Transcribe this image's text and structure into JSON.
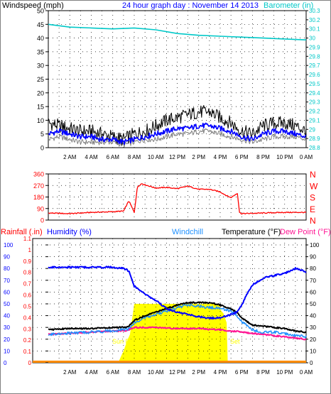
{
  "chart_data": [
    {
      "type": "line",
      "panel": "wind-barometer",
      "title": "24 hour graph day : November 14 2013",
      "ylabel_left": "Windspeed (mph)",
      "ylabel_right": "Barometer (in)",
      "ylim_left": [
        0,
        50
      ],
      "yticks_left": [
        "0",
        "5",
        "10",
        "15",
        "20",
        "25",
        "30",
        "35",
        "40",
        "45",
        "50"
      ],
      "ylim_right": [
        28.8,
        30.3
      ],
      "yticks_right": [
        "28.8",
        "28.9",
        "29",
        "29.1",
        "29.2",
        "29.3",
        "29.4",
        "29.5",
        "29.6",
        "29.7",
        "29.8",
        "29.9",
        "30",
        "30.1",
        "30.2",
        "30.3"
      ],
      "xticks": [
        "2 AM",
        "4 AM",
        "6 AM",
        "8 AM",
        "10 AM",
        "12 PM",
        "2 PM",
        "4 PM",
        "6 PM",
        "8 PM",
        "10 PM",
        "0 AM"
      ],
      "grid": true,
      "series": [
        {
          "name": "Windspeed (mph)",
          "color": "#0000ff",
          "x": [
            0,
            1,
            2,
            3,
            4,
            5,
            6,
            7,
            8,
            9,
            10,
            11,
            12,
            13,
            14,
            15,
            16,
            17,
            18,
            19,
            20,
            21,
            22,
            23,
            24
          ],
          "values": [
            5,
            6,
            5,
            4,
            4,
            3,
            3,
            2,
            3,
            4,
            5,
            6,
            7,
            7,
            8,
            8,
            7,
            6,
            4,
            3,
            5,
            6,
            6,
            5,
            4
          ]
        },
        {
          "name": "Wind gust (mph)",
          "color": "#000000",
          "x": [
            0,
            1,
            2,
            3,
            4,
            5,
            6,
            7,
            8,
            9,
            10,
            11,
            12,
            13,
            14,
            15,
            16,
            17,
            18,
            19,
            20,
            21,
            22,
            23,
            24
          ],
          "values": [
            9,
            8,
            7,
            6,
            6,
            5,
            4,
            3,
            5,
            6,
            8,
            10,
            11,
            12,
            13,
            13,
            11,
            9,
            6,
            5,
            8,
            9,
            9,
            8,
            6
          ]
        },
        {
          "name": "Wind average (mph)",
          "color": "#808080",
          "x": [
            0,
            1,
            2,
            3,
            4,
            5,
            6,
            7,
            8,
            9,
            10,
            11,
            12,
            13,
            14,
            15,
            16,
            17,
            18,
            19,
            20,
            21,
            22,
            23,
            24
          ],
          "values": [
            3,
            4,
            3,
            2,
            2,
            2,
            2,
            1,
            2,
            3,
            3,
            4,
            5,
            5,
            6,
            6,
            5,
            4,
            3,
            2,
            3,
            4,
            4,
            4,
            3
          ]
        },
        {
          "name": "Barometer (in)",
          "color": "#00c8c8",
          "axis": "right",
          "x": [
            0,
            2,
            4,
            6,
            8,
            10,
            12,
            14,
            16,
            18,
            20,
            22,
            24
          ],
          "values": [
            30.15,
            30.12,
            30.11,
            30.1,
            30.11,
            30.09,
            30.05,
            30.03,
            30.02,
            30.01,
            30.0,
            29.99,
            29.98
          ]
        }
      ]
    },
    {
      "type": "line",
      "panel": "wind-direction",
      "ylim": [
        0,
        360
      ],
      "yticks": [
        "0",
        "90",
        "180",
        "270",
        "360"
      ],
      "compass_labels": [
        "N",
        "W",
        "S",
        "E",
        "N"
      ],
      "grid": true,
      "series": [
        {
          "name": "Wind direction",
          "color": "#ff0000",
          "x": [
            0,
            2,
            4,
            6,
            7,
            7.5,
            8,
            8.3,
            8.7,
            9,
            10,
            11,
            12,
            13,
            14,
            15,
            16,
            16.5,
            17,
            17.6,
            17.8,
            18,
            20,
            22,
            24
          ],
          "values": [
            55,
            50,
            60,
            65,
            70,
            150,
            60,
            260,
            285,
            275,
            250,
            255,
            245,
            265,
            240,
            240,
            220,
            195,
            175,
            210,
            60,
            50,
            55,
            60,
            60
          ]
        }
      ]
    },
    {
      "type": "line",
      "panel": "temperature-humidity",
      "ylabel_rain": "Rainfall (.in)",
      "ylabel_humidity": "Humidity (%)",
      "ylabel_windchill": "Windchill",
      "ylabel_temperature": "Temperature (°F)",
      "ylabel_dewpoint": "Dew Point (°F)",
      "ylim_rain": [
        0,
        1.1
      ],
      "yticks_rain": [
        "0",
        "0.1",
        "0.2",
        "0.3",
        "0.4",
        "0.5",
        "0.6",
        "0.7",
        "0.8",
        "0.9",
        "1",
        "1.1"
      ],
      "ylim_humidity": [
        0,
        100
      ],
      "yticks_humidity": [
        "0",
        "10",
        "20",
        "30",
        "40",
        "50",
        "60",
        "70",
        "80",
        "90",
        "100"
      ],
      "ylim_temperature": [
        0,
        100
      ],
      "yticks_temperature": [
        "0",
        "10",
        "20",
        "30",
        "40",
        "50",
        "60",
        "70",
        "80",
        "90",
        "100"
      ],
      "xticks": [
        "2 AM",
        "4 AM",
        "6 AM",
        "8 AM",
        "10 AM",
        "12 PM",
        "2 PM",
        "4 PM",
        "6 PM",
        "8 PM",
        "10 PM",
        "0 AM"
      ],
      "annotations": [
        "Sun Rise",
        "Set"
      ],
      "grid": true,
      "series": [
        {
          "name": "Humidity (%)",
          "color": "#0000ff",
          "x": [
            0,
            2,
            4,
            6,
            7,
            7.5,
            8,
            8.5,
            9,
            10,
            11,
            12,
            13,
            14,
            15,
            16,
            17,
            17.5,
            18,
            18.5,
            19,
            20,
            21,
            22,
            23,
            24
          ],
          "values": [
            81,
            81,
            81,
            81,
            80,
            78,
            65,
            62,
            58,
            53,
            46,
            43,
            41,
            39,
            38,
            38,
            41,
            43,
            49,
            58,
            66,
            72,
            74,
            76,
            80,
            77
          ]
        },
        {
          "name": "Temperature (°F)",
          "color": "#000000",
          "x": [
            0,
            2,
            4,
            6,
            7,
            7.5,
            8,
            9,
            10,
            11,
            12,
            13,
            14,
            15,
            16,
            17,
            17.5,
            18,
            18.5,
            19,
            20,
            21,
            22,
            23,
            24
          ],
          "values": [
            28,
            29,
            29,
            30,
            30,
            31,
            36,
            40,
            43,
            46,
            49,
            51,
            51,
            51,
            49,
            46,
            43,
            38,
            35,
            32,
            31,
            30,
            29,
            27,
            26
          ]
        },
        {
          "name": "Windchill",
          "color": "#1e90ff",
          "x": [
            0,
            2,
            4,
            6,
            7,
            7.5,
            8,
            9,
            10,
            11,
            12,
            13,
            14,
            15,
            16,
            17,
            17.5,
            18,
            18.5,
            19,
            20,
            21,
            22,
            23,
            24
          ],
          "values": [
            24,
            25,
            26,
            27,
            28,
            29,
            34,
            38,
            41,
            44,
            47,
            49,
            48,
            47,
            46,
            44,
            41,
            35,
            31,
            28,
            26,
            26,
            25,
            23,
            22
          ]
        },
        {
          "name": "Dew Point (°F)",
          "color": "#ff1493",
          "x": [
            0,
            2,
            4,
            6,
            7,
            7.5,
            8,
            10,
            12,
            14,
            16,
            17,
            18,
            19,
            20,
            22,
            24
          ],
          "values": [
            24,
            25,
            26,
            27,
            27,
            28,
            30,
            30,
            29,
            29,
            28,
            27,
            26,
            25,
            24,
            22,
            20
          ]
        },
        {
          "name": "Solar",
          "color": "#ffff00",
          "x": [
            6.6,
            6.8,
            7.0,
            7.2,
            7.4,
            7.6,
            8.0,
            10,
            12,
            14,
            15.9,
            16.1,
            16.3,
            16.6,
            16.7
          ],
          "values": [
            2,
            6,
            10,
            15,
            20,
            24,
            50,
            50,
            50,
            50,
            50,
            44,
            42,
            34,
            0
          ]
        },
        {
          "name": "Rainfall (.in)",
          "color": "#ff8c00",
          "axis": "rain",
          "x": [
            0,
            24
          ],
          "values": [
            0,
            0
          ]
        }
      ]
    }
  ]
}
